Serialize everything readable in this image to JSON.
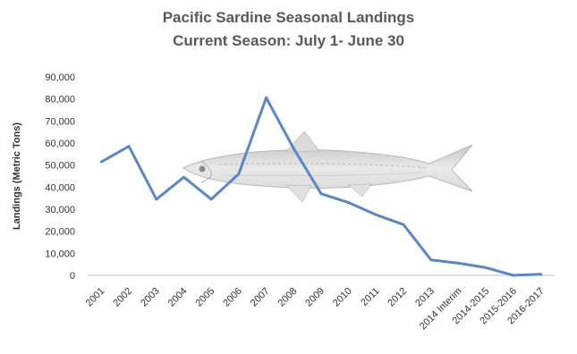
{
  "chart_data": {
    "type": "line",
    "title": "Pacific Sardine Seasonal Landings",
    "subtitle": "Current Season: July 1- June 30",
    "ylabel": "Landings (Metric Tons)",
    "xlabel": "",
    "ylim": [
      0,
      90000
    ],
    "yticks": [
      "0",
      "10,000",
      "20,000",
      "30,000",
      "40,000",
      "50,000",
      "60,000",
      "70,000",
      "80,000",
      "90,000"
    ],
    "categories": [
      "2001",
      "2002",
      "2003",
      "2004",
      "2005",
      "2006",
      "2007",
      "2008",
      "2009",
      "2010",
      "2011",
      "2012",
      "2013",
      "2014 Interim",
      "2014-2015",
      "2015-2016",
      "2016-2017"
    ],
    "series": [
      {
        "values": [
          51500,
          58500,
          34500,
          44500,
          34500,
          46000,
          80500,
          57500,
          37000,
          33000,
          27500,
          23000,
          7000,
          5500,
          3500,
          0,
          500
        ]
      }
    ],
    "colors": {
      "line": "#5b87c5",
      "grid": "#d9d9d9"
    },
    "grid": false,
    "background_image": "sardine-fish-illustration"
  }
}
